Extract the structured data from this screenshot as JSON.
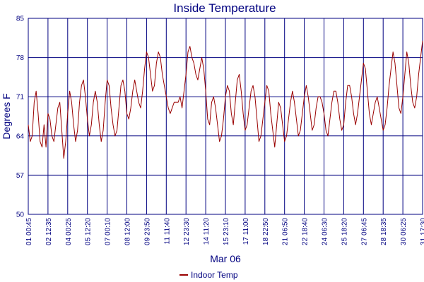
{
  "chart_data": {
    "type": "line",
    "title": "Inside Temperature",
    "xlabel": "Mar 06",
    "ylabel": "Degrees F",
    "ylim": [
      50,
      85
    ],
    "yticks": [
      50,
      57,
      64,
      71,
      78,
      85
    ],
    "grid": true,
    "legend": "bottom-center",
    "xticks": [
      "01 00:45",
      "02 12:35",
      "04 00:25",
      "05 12:20",
      "07 00:10",
      "08 12:00",
      "09 23:50",
      "11 11:40",
      "12 23:30",
      "14 11:20",
      "15 23:10",
      "17 11:00",
      "18 22:50",
      "21 06:50",
      "22 18:40",
      "24 06:30",
      "25 18:20",
      "27 06:45",
      "28 18:35",
      "30 06:25",
      "31 17:30"
    ],
    "series": [
      {
        "name": "Indoor Temp",
        "color": "#990000",
        "x": [
          0,
          0.1,
          0.2,
          0.3,
          0.4,
          0.5,
          0.6,
          0.7,
          0.8,
          0.9,
          1,
          1.1,
          1.2,
          1.3,
          1.4,
          1.5,
          1.6,
          1.7,
          1.8,
          1.9,
          2,
          2.1,
          2.2,
          2.3,
          2.4,
          2.5,
          2.6,
          2.7,
          2.8,
          2.9,
          3,
          3.1,
          3.2,
          3.3,
          3.4,
          3.5,
          3.6,
          3.7,
          3.8,
          3.9,
          4,
          4.1,
          4.2,
          4.3,
          4.4,
          4.5,
          4.6,
          4.7,
          4.8,
          4.9,
          5,
          5.1,
          5.2,
          5.3,
          5.4,
          5.5,
          5.6,
          5.7,
          5.8,
          5.9,
          6,
          6.1,
          6.2,
          6.3,
          6.4,
          6.5,
          6.6,
          6.7,
          6.8,
          6.9,
          7,
          7.1,
          7.2,
          7.3,
          7.4,
          7.5,
          7.6,
          7.7,
          7.8,
          7.9,
          8,
          8.1,
          8.2,
          8.3,
          8.4,
          8.5,
          8.6,
          8.7,
          8.8,
          8.9,
          9,
          9.1,
          9.2,
          9.3,
          9.4,
          9.5,
          9.6,
          9.7,
          9.8,
          9.9,
          10,
          10.1,
          10.2,
          10.3,
          10.4,
          10.5,
          10.6,
          10.7,
          10.8,
          10.9,
          11,
          11.1,
          11.2,
          11.3,
          11.4,
          11.5,
          11.6,
          11.7,
          11.8,
          11.9,
          12,
          12.1,
          12.2,
          12.3,
          12.4,
          12.5,
          12.6,
          12.7,
          12.8,
          12.9,
          13,
          13.1,
          13.2,
          13.3,
          13.4,
          13.5,
          13.6,
          13.7,
          13.8,
          13.9,
          14,
          14.1,
          14.2,
          14.3,
          14.4,
          14.5,
          14.6,
          14.7,
          14.8,
          14.9,
          15,
          15.1,
          15.2,
          15.3,
          15.4,
          15.5,
          15.6,
          15.7,
          15.8,
          15.9,
          16,
          16.1,
          16.2,
          16.3,
          16.4,
          16.5,
          16.6,
          16.7,
          16.8,
          16.9,
          17,
          17.1,
          17.2,
          17.3,
          17.4,
          17.5,
          17.6,
          17.7,
          17.8,
          17.9,
          18,
          18.1,
          18.2,
          18.3,
          18.4,
          18.5,
          18.6,
          18.7,
          18.8,
          18.9,
          19,
          19.1,
          19.2,
          19.3,
          19.4,
          19.5,
          19.6,
          19.7,
          19.8,
          19.9,
          20
        ],
        "values": [
          66,
          63,
          64,
          70,
          72,
          68,
          63,
          62,
          66,
          62,
          68,
          67,
          64,
          63,
          66,
          69,
          70,
          65,
          60,
          63,
          68,
          72,
          70,
          66,
          63,
          65,
          70,
          73,
          74,
          71,
          67,
          64,
          66,
          70,
          72,
          70,
          66,
          63,
          65,
          70,
          74,
          73,
          69,
          66,
          64,
          65,
          69,
          73,
          74,
          72,
          68,
          67,
          69,
          72,
          74,
          72,
          70,
          69,
          72,
          76,
          79,
          78,
          75,
          72,
          73,
          77,
          79,
          78,
          75,
          73,
          71,
          69,
          68,
          69,
          70,
          70,
          70,
          71,
          69,
          72,
          75,
          79,
          80,
          78,
          77,
          75,
          74,
          76,
          78,
          76,
          72,
          67,
          66,
          70,
          71,
          69,
          66,
          63,
          64,
          67,
          71,
          73,
          72,
          68,
          66,
          70,
          74,
          75,
          72,
          68,
          65,
          66,
          69,
          72,
          73,
          71,
          67,
          63,
          64,
          67,
          70,
          73,
          72,
          68,
          65,
          62,
          66,
          70,
          69,
          66,
          63,
          64,
          67,
          70,
          72,
          70,
          67,
          64,
          65,
          68,
          71,
          73,
          71,
          68,
          65,
          66,
          69,
          71,
          71,
          70,
          68,
          65,
          64,
          67,
          70,
          72,
          72,
          70,
          67,
          65,
          66,
          70,
          73,
          73,
          71,
          68,
          66,
          68,
          71,
          74,
          77,
          76,
          72,
          68,
          66,
          68,
          70,
          71,
          69,
          67,
          65,
          66,
          69,
          73,
          76,
          79,
          77,
          73,
          69,
          68,
          71,
          75,
          79,
          77,
          73,
          70,
          69,
          71,
          75,
          78,
          81
        ]
      }
    ]
  }
}
